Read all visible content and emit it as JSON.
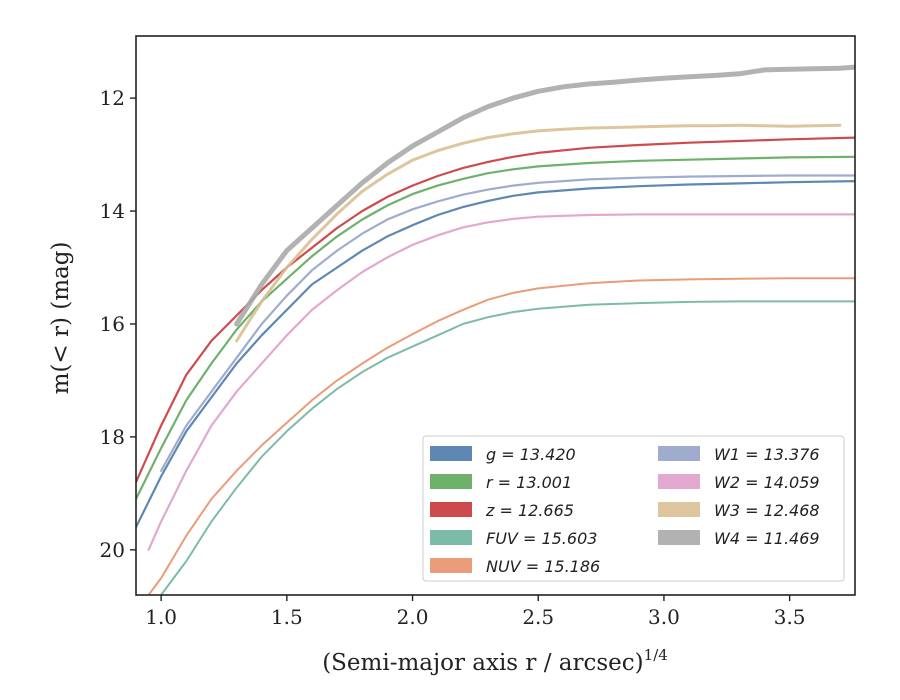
{
  "chart_data": {
    "type": "line",
    "xlabel": "(Semi-major axis r / arcsec)",
    "xlabel_exponent": "1/4",
    "ylabel": "m(< r) (mag)",
    "xlim": [
      0.9,
      3.76
    ],
    "ylim": [
      20.8,
      10.9
    ],
    "y_inverted": true,
    "xticks": [
      1.0,
      1.5,
      2.0,
      2.5,
      3.0,
      3.5
    ],
    "xtick_labels": [
      "1.0",
      "1.5",
      "2.0",
      "2.5",
      "3.0",
      "3.5"
    ],
    "yticks": [
      12,
      14,
      16,
      18,
      20
    ],
    "ytick_labels": [
      "12",
      "14",
      "16",
      "18",
      "20"
    ],
    "grid": false,
    "legend_position": "lower-right",
    "series": [
      {
        "name": "g = 13.420",
        "color": "#4c7bab",
        "width": 2.2,
        "x": [
          0.9,
          1.0,
          1.1,
          1.2,
          1.3,
          1.4,
          1.5,
          1.6,
          1.7,
          1.8,
          1.9,
          2.0,
          2.1,
          2.2,
          2.3,
          2.4,
          2.5,
          2.7,
          2.9,
          3.1,
          3.3,
          3.5,
          3.76
        ],
        "y": [
          19.6,
          18.7,
          17.9,
          17.3,
          16.7,
          16.2,
          15.75,
          15.3,
          15.0,
          14.7,
          14.45,
          14.25,
          14.07,
          13.93,
          13.82,
          13.73,
          13.67,
          13.6,
          13.56,
          13.53,
          13.51,
          13.49,
          13.47
        ]
      },
      {
        "name": "r = 13.001",
        "color": "#5ea85b",
        "width": 2.2,
        "x": [
          0.9,
          1.0,
          1.1,
          1.2,
          1.3,
          1.4,
          1.5,
          1.6,
          1.7,
          1.8,
          1.9,
          2.0,
          2.1,
          2.2,
          2.3,
          2.4,
          2.5,
          2.7,
          2.9,
          3.1,
          3.3,
          3.5,
          3.76
        ],
        "y": [
          19.1,
          18.2,
          17.35,
          16.7,
          16.1,
          15.6,
          15.2,
          14.8,
          14.45,
          14.15,
          13.9,
          13.7,
          13.55,
          13.43,
          13.33,
          13.26,
          13.21,
          13.15,
          13.11,
          13.09,
          13.07,
          13.05,
          13.04
        ]
      },
      {
        "name": "z = 12.665",
        "color": "#c8373a",
        "width": 2.2,
        "x": [
          0.9,
          1.0,
          1.1,
          1.2,
          1.3,
          1.4,
          1.5,
          1.6,
          1.7,
          1.8,
          1.9,
          2.0,
          2.1,
          2.2,
          2.3,
          2.4,
          2.5,
          2.7,
          2.9,
          3.1,
          3.3,
          3.5,
          3.76
        ],
        "y": [
          18.8,
          17.8,
          16.9,
          16.3,
          15.85,
          15.4,
          15.0,
          14.65,
          14.3,
          14.0,
          13.75,
          13.55,
          13.38,
          13.24,
          13.13,
          13.04,
          12.97,
          12.88,
          12.83,
          12.79,
          12.76,
          12.73,
          12.7
        ]
      },
      {
        "name": "FUV = 15.603",
        "color": "#6fb4a0",
        "width": 2.0,
        "x": [
          1.0,
          1.1,
          1.2,
          1.3,
          1.4,
          1.5,
          1.6,
          1.7,
          1.8,
          1.9,
          2.0,
          2.1,
          2.2,
          2.3,
          2.4,
          2.5,
          2.7,
          2.9,
          3.1,
          3.3,
          3.5,
          3.76
        ],
        "y": [
          20.8,
          20.2,
          19.5,
          18.9,
          18.35,
          17.9,
          17.5,
          17.15,
          16.85,
          16.6,
          16.4,
          16.2,
          16.0,
          15.88,
          15.79,
          15.73,
          15.66,
          15.63,
          15.61,
          15.6,
          15.6,
          15.6
        ]
      },
      {
        "name": "NUV = 15.186",
        "color": "#e8916a",
        "width": 2.0,
        "x": [
          0.95,
          1.0,
          1.1,
          1.2,
          1.3,
          1.4,
          1.5,
          1.6,
          1.7,
          1.8,
          1.9,
          2.0,
          2.1,
          2.2,
          2.3,
          2.4,
          2.5,
          2.7,
          2.9,
          3.1,
          3.3,
          3.5,
          3.76
        ],
        "y": [
          20.8,
          20.5,
          19.75,
          19.1,
          18.6,
          18.15,
          17.75,
          17.35,
          17.0,
          16.7,
          16.42,
          16.18,
          15.95,
          15.75,
          15.57,
          15.45,
          15.37,
          15.28,
          15.23,
          15.21,
          15.2,
          15.19,
          15.19
        ]
      },
      {
        "name": "W1 = 13.376",
        "color": "#95a3c8",
        "width": 2.2,
        "x": [
          1.0,
          1.1,
          1.2,
          1.3,
          1.4,
          1.5,
          1.6,
          1.7,
          1.8,
          1.9,
          2.0,
          2.1,
          2.2,
          2.3,
          2.4,
          2.5,
          2.7,
          2.9,
          3.1,
          3.3,
          3.5,
          3.76
        ],
        "y": [
          18.6,
          17.8,
          17.2,
          16.6,
          16.0,
          15.5,
          15.05,
          14.7,
          14.4,
          14.15,
          13.97,
          13.83,
          13.71,
          13.62,
          13.55,
          13.5,
          13.44,
          13.41,
          13.39,
          13.38,
          13.37,
          13.37
        ]
      },
      {
        "name": "W2 = 14.059",
        "color": "#df9fcb",
        "width": 2.2,
        "x": [
          0.95,
          1.0,
          1.1,
          1.2,
          1.3,
          1.4,
          1.5,
          1.6,
          1.7,
          1.8,
          1.9,
          2.0,
          2.1,
          2.2,
          2.3,
          2.4,
          2.5,
          2.7,
          2.9,
          3.1,
          3.3,
          3.5,
          3.76
        ],
        "y": [
          20.0,
          19.5,
          18.6,
          17.8,
          17.2,
          16.7,
          16.2,
          15.75,
          15.4,
          15.08,
          14.82,
          14.6,
          14.43,
          14.29,
          14.2,
          14.14,
          14.1,
          14.07,
          14.06,
          14.06,
          14.06,
          14.06,
          14.06
        ]
      },
      {
        "name": "W3 = 12.468",
        "color": "#d9bf92",
        "width": 3.0,
        "x": [
          1.3,
          1.4,
          1.5,
          1.6,
          1.7,
          1.8,
          1.9,
          2.0,
          2.1,
          2.2,
          2.3,
          2.4,
          2.5,
          2.6,
          2.7,
          2.8,
          2.9,
          3.0,
          3.1,
          3.2,
          3.3,
          3.4,
          3.5,
          3.6,
          3.7
        ],
        "y": [
          16.3,
          15.6,
          15.0,
          14.5,
          14.05,
          13.65,
          13.35,
          13.1,
          12.93,
          12.8,
          12.7,
          12.63,
          12.58,
          12.55,
          12.53,
          12.52,
          12.51,
          12.5,
          12.49,
          12.49,
          12.48,
          12.49,
          12.5,
          12.49,
          12.48
        ]
      },
      {
        "name": "W4 = 11.469",
        "color": "#aaaaaa",
        "width": 5.0,
        "x": [
          1.3,
          1.4,
          1.5,
          1.6,
          1.7,
          1.8,
          1.9,
          2.0,
          2.1,
          2.2,
          2.3,
          2.4,
          2.5,
          2.6,
          2.7,
          2.8,
          2.9,
          3.0,
          3.1,
          3.2,
          3.3,
          3.4,
          3.5,
          3.6,
          3.7,
          3.76
        ],
        "y": [
          16.0,
          15.3,
          14.7,
          14.3,
          13.9,
          13.5,
          13.15,
          12.85,
          12.6,
          12.35,
          12.15,
          12.0,
          11.88,
          11.8,
          11.75,
          11.72,
          11.68,
          11.65,
          11.62,
          11.6,
          11.57,
          11.5,
          11.49,
          11.48,
          11.47,
          11.45
        ]
      }
    ]
  }
}
